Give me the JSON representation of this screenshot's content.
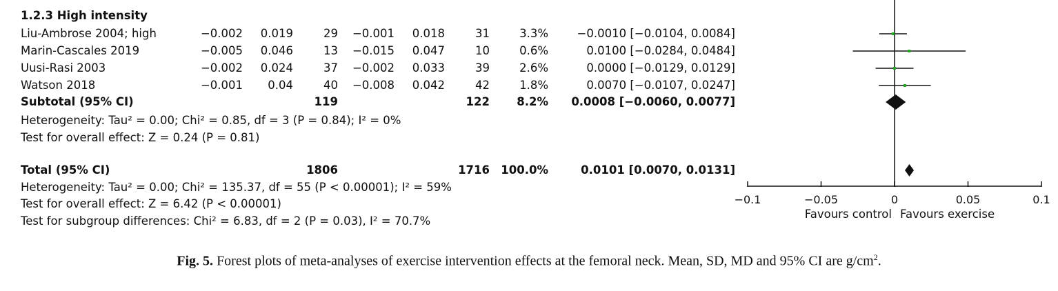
{
  "subgroup_title": "1.2.3 High intensity",
  "studies": [
    {
      "name": "Liu-Ambrose 2004; high",
      "exp_mean": "−0.002",
      "exp_sd": "0.019",
      "exp_total": "29",
      "ctl_mean": "−0.001",
      "ctl_sd": "0.018",
      "ctl_total": "31",
      "weight": "3.3%",
      "md": "−0.0010 [−0.0104, 0.0084]"
    },
    {
      "name": "Marin-Cascales 2019",
      "exp_mean": "−0.005",
      "exp_sd": "0.046",
      "exp_total": "13",
      "ctl_mean": "−0.015",
      "ctl_sd": "0.047",
      "ctl_total": "10",
      "weight": "0.6%",
      "md": "0.0100 [−0.0284, 0.0484]"
    },
    {
      "name": "Uusi-Rasi 2003",
      "exp_mean": "−0.002",
      "exp_sd": "0.024",
      "exp_total": "37",
      "ctl_mean": "−0.002",
      "ctl_sd": "0.033",
      "ctl_total": "39",
      "weight": "2.6%",
      "md": "0.0000 [−0.0129, 0.0129]"
    },
    {
      "name": "Watson 2018",
      "exp_mean": "−0.001",
      "exp_sd": "0.04",
      "exp_total": "40",
      "ctl_mean": "−0.008",
      "ctl_sd": "0.042",
      "ctl_total": "42",
      "weight": "1.8%",
      "md": "0.0070 [−0.0107, 0.0247]"
    }
  ],
  "subtotal": {
    "label": "Subtotal (95% CI)",
    "exp_total": "119",
    "ctl_total": "122",
    "weight": "8.2%",
    "md": "0.0008 [−0.0060, 0.0077]"
  },
  "subgroup_heterogeneity": "Heterogeneity: Tau² = 0.00; Chi² = 0.85, df = 3 (P = 0.84); I² = 0%",
  "subgroup_overall": "Test for overall effect: Z = 0.24 (P = 0.81)",
  "total": {
    "label": "Total (95% CI)",
    "exp_total": "1806",
    "ctl_total": "1716",
    "weight": "100.0%",
    "md": "0.0101 [0.0070, 0.0131]"
  },
  "total_heterogeneity": "Heterogeneity: Tau² = 0.00; Chi² = 135.37, df = 55 (P < 0.00001); I² = 59%",
  "total_overall": "Test for overall effect: Z = 6.42 (P < 0.00001)",
  "subgroup_differences": "Test for subgroup differences: Chi² = 6.83, df = 2 (P = 0.03), I² = 70.7%",
  "caption": {
    "label": "Fig. 5.",
    "text": "Forest plots of meta-analyses of exercise intervention effects at the femoral neck. Mean, SD, MD and 95% CI are g/cm",
    "superscript": "2",
    "end": "."
  },
  "colors": {
    "point": "#22aa22",
    "line": "#111111",
    "diamond": "#111111"
  },
  "chart_data": {
    "type": "forest",
    "xlim": [
      -0.1,
      0.1
    ],
    "ticks": [
      -0.1,
      -0.05,
      0,
      0.05,
      0.1
    ],
    "tick_labels": [
      "−0.1",
      "−0.05",
      "0",
      "0.05",
      "0.1"
    ],
    "xlabel_left": "Favours control",
    "xlabel_right": "Favours exercise",
    "points": [
      {
        "name": "Liu-Ambrose 2004; high",
        "md": -0.001,
        "lo": -0.0104,
        "hi": 0.0084
      },
      {
        "name": "Marin-Cascales 2019",
        "md": 0.01,
        "lo": -0.0284,
        "hi": 0.0484
      },
      {
        "name": "Uusi-Rasi 2003",
        "md": 0.0,
        "lo": -0.0129,
        "hi": 0.0129
      },
      {
        "name": "Watson 2018",
        "md": 0.007,
        "lo": -0.0107,
        "hi": 0.0247
      }
    ],
    "diamonds": [
      {
        "name": "Subtotal (95% CI)",
        "md": 0.0008,
        "lo": -0.006,
        "hi": 0.0077
      },
      {
        "name": "Total (95% CI)",
        "md": 0.0101,
        "lo": 0.007,
        "hi": 0.0131
      }
    ]
  }
}
